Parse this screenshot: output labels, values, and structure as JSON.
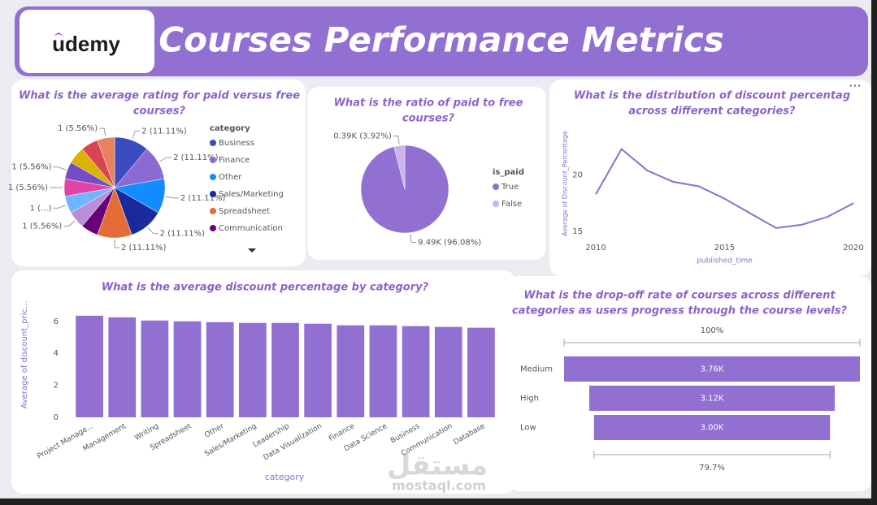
{
  "header": {
    "logo": "udemy",
    "title": "Courses Performance Metrics"
  },
  "watermark": [
    "مستقل",
    "mostaql.com"
  ],
  "chart_data": [
    {
      "type": "pie",
      "title": [
        "What is the average rating for paid versus free",
        "courses?"
      ],
      "legend_title": "category",
      "categories": [
        "Business",
        "Finance",
        "Other",
        "Sales/Marketing",
        "Spreadsheet",
        "Communication",
        null,
        null,
        null,
        null,
        null,
        null,
        null
      ],
      "values": [
        2,
        2,
        2,
        2,
        2,
        1,
        1,
        1,
        1,
        1,
        1,
        1,
        1
      ],
      "value_labels": [
        "2 (11.11%)",
        "2 (11.11%)",
        "2 (11.11%)",
        "2 (11.11%)",
        "2 (11.11%)",
        null,
        "1 (5.56%)",
        "1 (...)",
        "1 (5.56%)",
        "1 (5.56%)",
        null,
        null,
        "1 (5.56%)"
      ],
      "colors": [
        "#3b4cc0",
        "#8c6ad4",
        "#118dff",
        "#1a2a9e",
        "#e66c37",
        "#6b007b",
        "#b98fd6",
        "#6fb6ff",
        "#e044a7",
        "#744ec2",
        "#d9b300",
        "#d64550",
        "#e8825e"
      ]
    },
    {
      "type": "pie",
      "title": [
        "What is the ratio of paid to free",
        "courses?"
      ],
      "legend_title": "is_paid",
      "categories": [
        "True",
        "False"
      ],
      "values": [
        9490,
        390
      ],
      "value_labels": [
        "9.49K (96.08%)",
        "0.39K (3.92%)"
      ],
      "colors": [
        "#9170d2",
        "#c9b5ec"
      ]
    },
    {
      "type": "line",
      "title": [
        "What is the distribution of discount percentag",
        "across different categories?"
      ],
      "x_label": "published_time",
      "y_label": "Average of Discount_Percentage",
      "x": [
        2010,
        2011,
        2012,
        2013,
        2014,
        2015,
        2016,
        2017,
        2018,
        2019,
        2020
      ],
      "values": [
        18.3,
        22.3,
        20.4,
        19.4,
        19.0,
        17.9,
        16.6,
        15.3,
        15.6,
        16.3,
        17.5
      ],
      "xlim": [
        2010,
        2020
      ],
      "xticks": [
        2010,
        2015,
        2020
      ],
      "ylim": [
        14.5,
        24
      ],
      "yticks": [
        15,
        20
      ],
      "color": "#8b6fd0"
    },
    {
      "type": "bar",
      "title": [
        "What is the average discount percentage by category?"
      ],
      "x_label": "category",
      "y_label": "Average of discount_pric...",
      "categories": [
        "Project Manage...",
        "Management",
        "Writing",
        "Spreadsheet",
        "Other",
        "Sales/Marketing",
        "Leadership",
        "Data Visualization",
        "Finance",
        "Data Science",
        "Business",
        "Communication",
        "Database"
      ],
      "values": [
        6.35,
        6.25,
        6.05,
        6.0,
        5.95,
        5.9,
        5.9,
        5.85,
        5.75,
        5.75,
        5.7,
        5.65,
        5.6
      ],
      "ylim": [
        0,
        6.8
      ],
      "yticks": [
        0,
        2,
        4,
        6
      ],
      "color": "#9170d2"
    },
    {
      "type": "funnel",
      "title": [
        "What is the drop-off rate of courses across different",
        "categories as users progress through the course levels?"
      ],
      "categories": [
        "Medium",
        "High",
        "Low"
      ],
      "values": [
        3760,
        3120,
        3000
      ],
      "value_labels": [
        "3.76K",
        "3.12K",
        "3.00K"
      ],
      "start_label": "100%",
      "end_label": "79.7%",
      "color": "#9170d2"
    }
  ]
}
